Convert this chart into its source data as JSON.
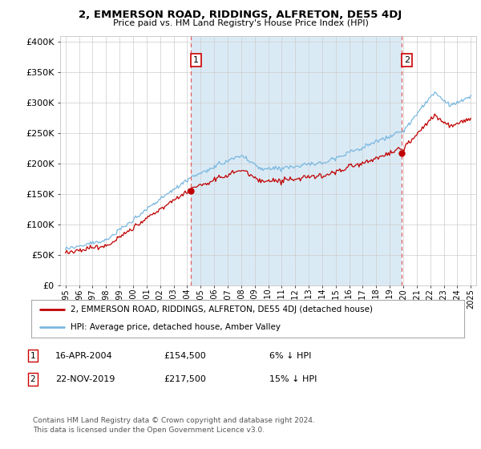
{
  "title": "2, EMMERSON ROAD, RIDDINGS, ALFRETON, DE55 4DJ",
  "subtitle": "Price paid vs. HM Land Registry's House Price Index (HPI)",
  "legend_line1": "2, EMMERSON ROAD, RIDDINGS, ALFRETON, DE55 4DJ (detached house)",
  "legend_line2": "HPI: Average price, detached house, Amber Valley",
  "footnote": "Contains HM Land Registry data © Crown copyright and database right 2024.\nThis data is licensed under the Open Government Licence v3.0.",
  "sale1_date": "16-APR-2004",
  "sale1_price": "£154,500",
  "sale1_note": "6% ↓ HPI",
  "sale2_date": "22-NOV-2019",
  "sale2_price": "£217,500",
  "sale2_note": "15% ↓ HPI",
  "hpi_color": "#7ab8e0",
  "hpi_fill_color": "#daeaf5",
  "sale_color": "#c00000",
  "vline_color": "#e06060",
  "grid_color": "#cccccc",
  "background_color": "#ffffff",
  "ylim": [
    0,
    410000
  ],
  "yticks": [
    0,
    50000,
    100000,
    150000,
    200000,
    250000,
    300000,
    350000,
    400000
  ],
  "ytick_labels": [
    "£0",
    "£50K",
    "£100K",
    "£150K",
    "£200K",
    "£250K",
    "£300K",
    "£350K",
    "£400K"
  ],
  "sale1_x": 2004.29,
  "sale1_y": 154500,
  "sale2_x": 2019.9,
  "sale2_y": 217500,
  "xlim_left": 1994.6,
  "xlim_right": 2025.4
}
